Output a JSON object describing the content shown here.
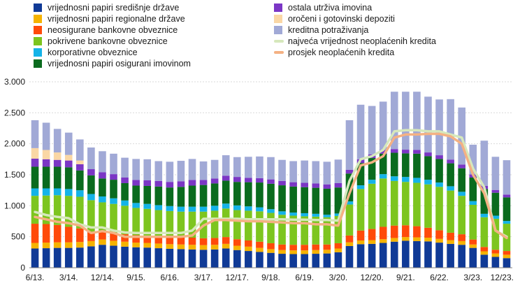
{
  "chart_data": {
    "type": "bar",
    "stacked": true,
    "title": "",
    "xlabel": "",
    "ylabel": "",
    "ylim": [
      0,
      3000
    ],
    "yticks": [
      0,
      500,
      1000,
      1500,
      2000,
      2500,
      3000
    ],
    "ytick_labels": [
      "0",
      "500",
      "1.000",
      "1.500",
      "2.000",
      "2.500",
      "3.000"
    ],
    "x_tick_labels": [
      "6/13.",
      "3/14.",
      "12/14.",
      "9/15.",
      "6/16.",
      "3/17.",
      "12/17.",
      "9/18.",
      "6/19.",
      "3/20.",
      "12/20.",
      "9/21.",
      "6/22.",
      "3/23.",
      "12/23."
    ],
    "legend_placement": "top",
    "categories": [
      "6/13.",
      "9/13.",
      "12/13.",
      "3/14.",
      "6/14.",
      "9/14.",
      "12/14.",
      "3/15.",
      "6/15.",
      "9/15.",
      "12/15.",
      "3/16.",
      "6/16.",
      "9/16.",
      "12/16.",
      "3/17.",
      "6/17.",
      "9/17.",
      "12/17.",
      "3/18.",
      "6/18.",
      "9/18.",
      "12/18.",
      "3/19.",
      "6/19.",
      "9/19.",
      "12/19.",
      "3/20.",
      "6/20.",
      "9/20.",
      "12/20.",
      "3/21.",
      "6/21.",
      "9/21.",
      "12/21.",
      "3/22.",
      "6/22.",
      "9/22.",
      "12/22.",
      "3/23.",
      "6/23.",
      "9/23.",
      "12/23."
    ],
    "series": [
      {
        "name": "vrijednosni papiri središnje države",
        "color": "#103a96",
        "values": [
          310,
          315,
          320,
          320,
          325,
          345,
          370,
          355,
          340,
          330,
          325,
          315,
          305,
          300,
          295,
          290,
          295,
          310,
          285,
          270,
          255,
          240,
          225,
          220,
          220,
          225,
          230,
          250,
          350,
          380,
          385,
          400,
          420,
          435,
          430,
          425,
          405,
          385,
          370,
          320,
          210,
          175,
          155
        ]
      },
      {
        "name": "vrijednosni papiri regionalne države",
        "color": "#f5b300",
        "values": [
          90,
          90,
          90,
          90,
          90,
          85,
          85,
          80,
          80,
          75,
          75,
          75,
          75,
          75,
          75,
          75,
          75,
          75,
          70,
          70,
          65,
          60,
          60,
          60,
          60,
          60,
          60,
          60,
          60,
          60,
          60,
          60,
          60,
          60,
          60,
          60,
          60,
          60,
          60,
          55,
          55,
          55,
          55
        ]
      },
      {
        "name": "neosigurane bankovne obveznice",
        "color": "#ff4a0a",
        "values": [
          310,
          300,
          280,
          250,
          220,
          150,
          130,
          125,
          120,
          120,
          120,
          115,
          115,
          115,
          115,
          110,
          110,
          110,
          105,
          100,
          100,
          95,
          90,
          90,
          90,
          90,
          85,
          85,
          110,
          160,
          180,
          200,
          200,
          190,
          180,
          160,
          140,
          120,
          110,
          80,
          70,
          60,
          60
        ]
      },
      {
        "name": "pokrivene bankovne obveznice",
        "color": "#7dc51f",
        "values": [
          450,
          460,
          480,
          500,
          510,
          510,
          470,
          470,
          460,
          440,
          430,
          425,
          420,
          415,
          420,
          430,
          440,
          460,
          470,
          480,
          490,
          490,
          480,
          470,
          460,
          450,
          440,
          440,
          500,
          670,
          730,
          780,
          720,
          700,
          700,
          700,
          700,
          680,
          620,
          560,
          480,
          500,
          440
        ]
      },
      {
        "name": "korporativne obveznice",
        "color": "#14b3e8",
        "values": [
          120,
          115,
          110,
          110,
          105,
          100,
          95,
          90,
          85,
          80,
          80,
          80,
          80,
          80,
          80,
          80,
          80,
          80,
          75,
          70,
          65,
          60,
          55,
          50,
          50,
          45,
          40,
          40,
          50,
          60,
          65,
          70,
          75,
          80,
          80,
          75,
          70,
          70,
          65,
          60,
          55,
          50,
          45
        ]
      },
      {
        "name": "vrijednosni papiri osigurani imovinom",
        "color": "#0a6b1e",
        "values": [
          350,
          350,
          350,
          350,
          320,
          300,
          290,
          300,
          280,
          280,
          290,
          300,
          300,
          320,
          340,
          350,
          360,
          370,
          380,
          390,
          400,
          410,
          420,
          420,
          420,
          420,
          420,
          420,
          450,
          360,
          350,
          330,
          380,
          380,
          390,
          380,
          380,
          370,
          380,
          380,
          400,
          370,
          380
        ]
      },
      {
        "name": "ostala utrživa imovina",
        "color": "#7b36c5",
        "values": [
          130,
          120,
          110,
          110,
          100,
          100,
          100,
          90,
          90,
          90,
          90,
          90,
          90,
          90,
          90,
          80,
          80,
          80,
          80,
          70,
          70,
          70,
          70,
          70,
          70,
          70,
          70,
          70,
          60,
          60,
          60,
          60,
          60,
          60,
          60,
          60,
          60,
          60,
          60,
          50,
          50,
          45,
          45
        ]
      },
      {
        "name": "oročeni i gotovinski depoziti",
        "color": "#fad7a5",
        "values": [
          170,
          150,
          120,
          90,
          60,
          0,
          0,
          0,
          0,
          0,
          0,
          0,
          0,
          0,
          0,
          0,
          0,
          0,
          0,
          0,
          0,
          0,
          0,
          0,
          0,
          0,
          0,
          0,
          0,
          0,
          0,
          0,
          0,
          0,
          0,
          0,
          0,
          0,
          0,
          0,
          0,
          0,
          0
        ]
      },
      {
        "name": "kreditna potraživanja",
        "color": "#a1a9d6",
        "values": [
          450,
          440,
          380,
          360,
          340,
          350,
          340,
          330,
          320,
          340,
          340,
          320,
          325,
          330,
          340,
          300,
          300,
          330,
          320,
          340,
          350,
          360,
          340,
          340,
          360,
          360,
          365,
          380,
          800,
          880,
          780,
          780,
          925,
          935,
          940,
          900,
          900,
          975,
          920,
          480,
          730,
          535,
          555
        ]
      }
    ],
    "lines": [
      {
        "name": "najveća vrijednost neoplaćenih kredita",
        "color": "#d6e8bc",
        "values": [
          900,
          850,
          820,
          800,
          700,
          650,
          650,
          600,
          570,
          560,
          560,
          560,
          560,
          560,
          600,
          790,
          790,
          790,
          790,
          780,
          780,
          780,
          780,
          775,
          775,
          770,
          770,
          760,
          1400,
          1750,
          1800,
          1900,
          2200,
          2220,
          2220,
          2200,
          2200,
          2150,
          2100,
          1600,
          1300,
          600,
          500
        ]
      },
      {
        "name": "prosjek neoplaćenih kredita",
        "color": "#f4b183",
        "values": [
          820,
          780,
          740,
          720,
          680,
          560,
          590,
          560,
          500,
          500,
          500,
          500,
          500,
          500,
          520,
          680,
          770,
          770,
          760,
          750,
          750,
          740,
          730,
          720,
          720,
          700,
          700,
          680,
          1200,
          1650,
          1700,
          1800,
          2100,
          2150,
          2150,
          2160,
          2160,
          2120,
          2000,
          1500,
          1200,
          600,
          480
        ]
      }
    ]
  }
}
